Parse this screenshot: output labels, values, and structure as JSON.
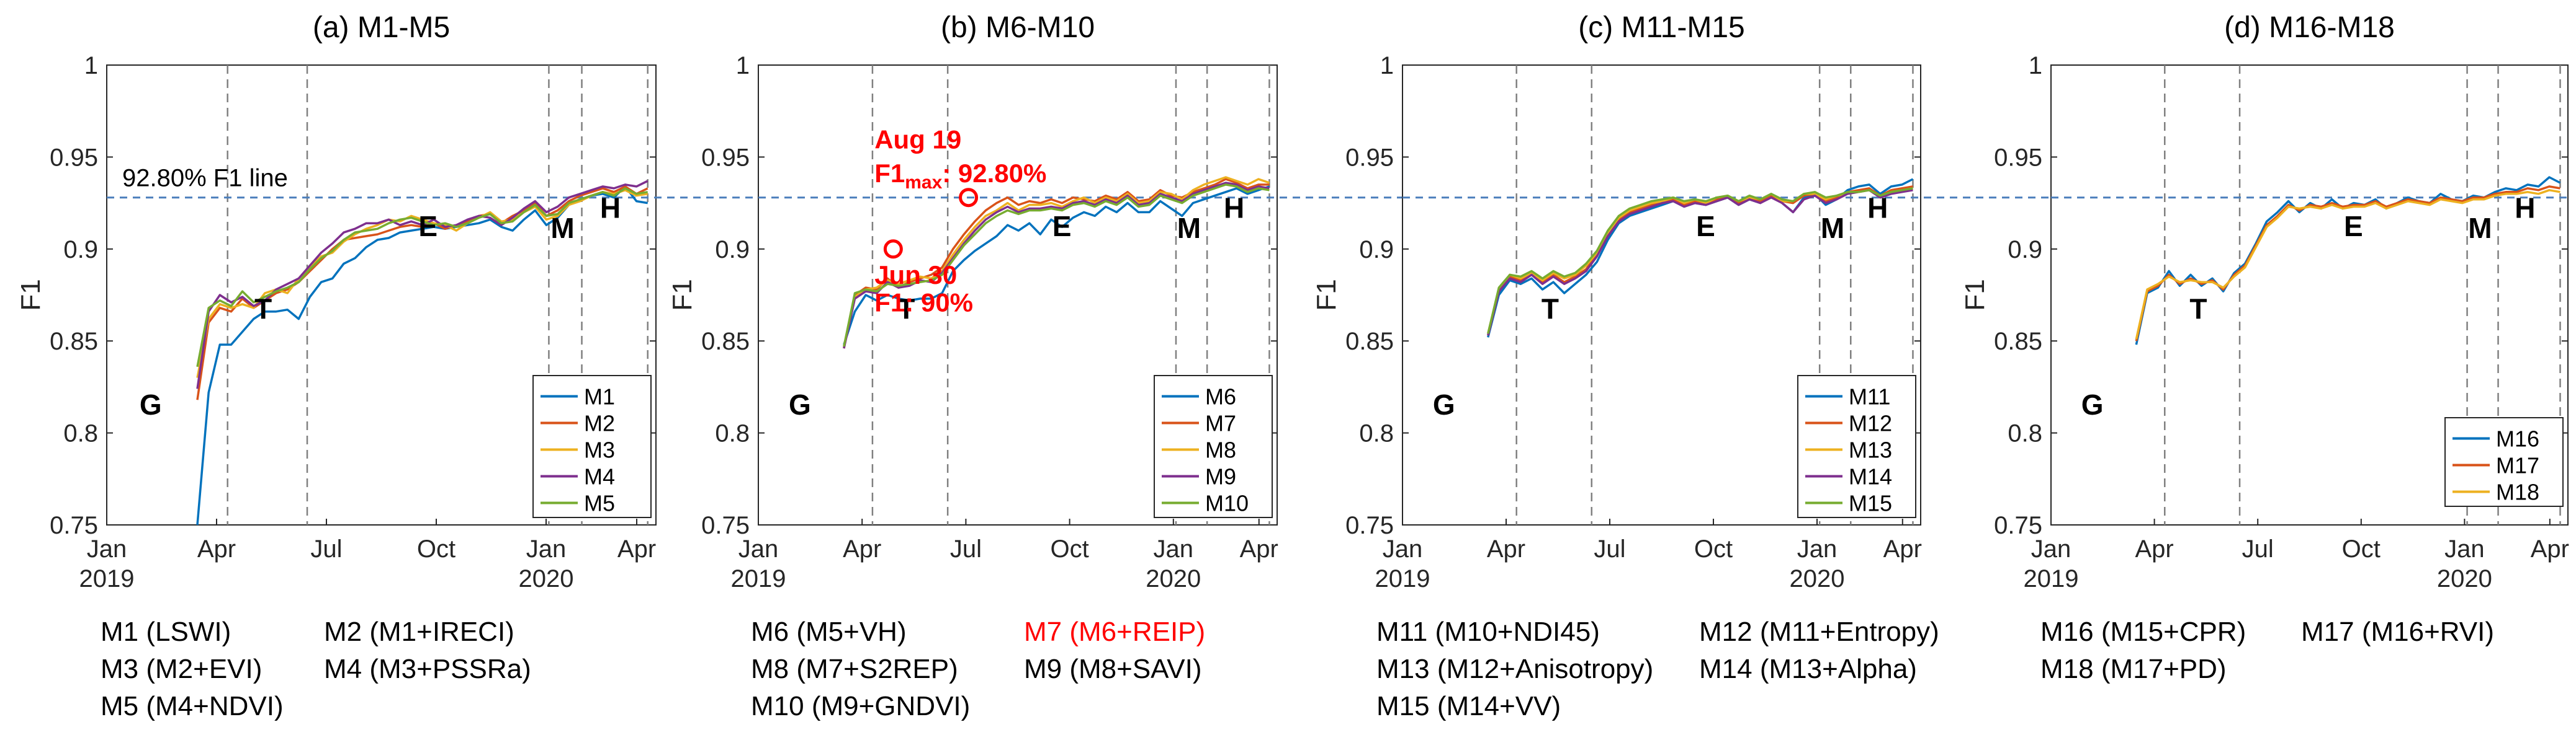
{
  "colors": {
    "M1": "#0072BD",
    "M2": "#D95319",
    "M3": "#EDB120",
    "M4": "#7E2F8E",
    "M5": "#77AC30",
    "ref_line": "#4A7EBB",
    "annotation": "#FF0000",
    "phase_line": "#808080"
  },
  "chart_data": [
    {
      "type": "line",
      "title": "(a) M1-M5",
      "ylabel": "F1",
      "ylim": [
        0.75,
        1
      ],
      "yticks": [
        "0.75",
        "0.8",
        "0.85",
        "0.9",
        "0.95",
        "1"
      ],
      "xticks": [
        "Jan",
        "Apr",
        "Jul",
        "Oct",
        "Jan",
        "Apr"
      ],
      "year_labels": [
        "2019",
        "2020"
      ],
      "ref_line_value": 0.928,
      "ref_line_label": "92.80% F1 line",
      "phase_labels": [
        "G",
        "T",
        "E",
        "M",
        "H"
      ],
      "legend_position": "bottom-right",
      "series": [
        {
          "name": "M1",
          "values": [
            0.75,
            0.822,
            0.848,
            0.848,
            0.855,
            0.862,
            0.866,
            0.866,
            0.867,
            0.862,
            0.874,
            0.882,
            0.884,
            0.892,
            0.895,
            0.901,
            0.905,
            0.906,
            0.909,
            0.91,
            0.911,
            0.912,
            0.911,
            0.912,
            0.913,
            0.914,
            0.916,
            0.912,
            0.91,
            0.916,
            0.921,
            0.913,
            0.917,
            0.924,
            0.927,
            0.929,
            0.93,
            0.928,
            0.934,
            0.926,
            0.925
          ]
        },
        {
          "name": "M2",
          "values": [
            0.818,
            0.86,
            0.868,
            0.866,
            0.873,
            0.868,
            0.872,
            0.876,
            0.878,
            0.882,
            0.888,
            0.894,
            0.9,
            0.905,
            0.906,
            0.907,
            0.908,
            0.91,
            0.912,
            0.913,
            0.912,
            0.914,
            0.911,
            0.913,
            0.915,
            0.918,
            0.919,
            0.914,
            0.918,
            0.921,
            0.925,
            0.918,
            0.921,
            0.926,
            0.929,
            0.931,
            0.933,
            0.931,
            0.934,
            0.93,
            0.933
          ]
        },
        {
          "name": "M3",
          "values": [
            0.83,
            0.862,
            0.87,
            0.868,
            0.87,
            0.868,
            0.876,
            0.878,
            0.876,
            0.884,
            0.89,
            0.896,
            0.898,
            0.904,
            0.908,
            0.911,
            0.913,
            0.916,
            0.915,
            0.918,
            0.916,
            0.914,
            0.913,
            0.91,
            0.914,
            0.917,
            0.92,
            0.915,
            0.916,
            0.92,
            0.923,
            0.916,
            0.918,
            0.924,
            0.926,
            0.929,
            0.931,
            0.93,
            0.932,
            0.929,
            0.93
          ]
        },
        {
          "name": "M4",
          "values": [
            0.824,
            0.866,
            0.875,
            0.871,
            0.874,
            0.869,
            0.872,
            0.878,
            0.881,
            0.884,
            0.891,
            0.898,
            0.903,
            0.909,
            0.911,
            0.914,
            0.914,
            0.916,
            0.913,
            0.915,
            0.913,
            0.916,
            0.912,
            0.913,
            0.916,
            0.918,
            0.917,
            0.913,
            0.917,
            0.922,
            0.926,
            0.92,
            0.923,
            0.928,
            0.93,
            0.932,
            0.934,
            0.933,
            0.935,
            0.934,
            0.937
          ]
        },
        {
          "name": "M5",
          "values": [
            0.836,
            0.868,
            0.872,
            0.869,
            0.877,
            0.871,
            0.874,
            0.877,
            0.879,
            0.882,
            0.889,
            0.895,
            0.899,
            0.905,
            0.909,
            0.91,
            0.911,
            0.914,
            0.916,
            0.917,
            0.915,
            0.913,
            0.914,
            0.912,
            0.914,
            0.917,
            0.919,
            0.914,
            0.915,
            0.92,
            0.924,
            0.918,
            0.919,
            0.925,
            0.927,
            0.929,
            0.931,
            0.929,
            0.933,
            0.93,
            0.931
          ]
        }
      ],
      "legend": [
        "M1",
        "M2",
        "M3",
        "M4",
        "M5"
      ]
    },
    {
      "type": "line",
      "title": "(b) M6-M10",
      "ylabel": "F1",
      "ylim": [
        0.75,
        1
      ],
      "yticks": [
        "0.75",
        "0.8",
        "0.85",
        "0.9",
        "0.95",
        "1"
      ],
      "xticks": [
        "Jan",
        "Apr",
        "Jul",
        "Oct",
        "Jan",
        "Apr"
      ],
      "year_labels": [
        "2019",
        "2020"
      ],
      "ref_line_value": 0.928,
      "phase_labels": [
        "G",
        "T",
        "E",
        "M",
        "H"
      ],
      "legend_position": "bottom-right",
      "annotations": [
        {
          "line1": "Aug 19",
          "line2_main": "F1",
          "line2_sub": "max",
          "line2_rest": ": 92.80%",
          "marker_y": 0.928
        },
        {
          "line1": "Jun 30",
          "line2_main": "F1: 90%",
          "marker_y": 0.9
        }
      ],
      "series": [
        {
          "name": "M6",
          "values": [
            0.848,
            0.866,
            0.875,
            0.872,
            0.875,
            0.873,
            0.872,
            0.873,
            0.873,
            0.876,
            0.888,
            0.894,
            0.899,
            0.903,
            0.907,
            0.913,
            0.91,
            0.914,
            0.908,
            0.916,
            0.912,
            0.917,
            0.92,
            0.918,
            0.923,
            0.92,
            0.925,
            0.92,
            0.92,
            0.926,
            0.922,
            0.918,
            0.925,
            0.927,
            0.929,
            0.931,
            0.933,
            0.93,
            0.932,
            0.934
          ]
        },
        {
          "name": "M7",
          "values": [
            0.846,
            0.875,
            0.879,
            0.878,
            0.884,
            0.879,
            0.882,
            0.884,
            0.886,
            0.89,
            0.9,
            0.908,
            0.915,
            0.921,
            0.925,
            0.928,
            0.924,
            0.926,
            0.925,
            0.927,
            0.925,
            0.928,
            0.927,
            0.926,
            0.929,
            0.927,
            0.931,
            0.926,
            0.927,
            0.932,
            0.929,
            0.928,
            0.931,
            0.933,
            0.935,
            0.938,
            0.936,
            0.933,
            0.935,
            0.935
          ]
        },
        {
          "name": "M8",
          "values": [
            0.847,
            0.874,
            0.878,
            0.879,
            0.883,
            0.881,
            0.883,
            0.885,
            0.884,
            0.888,
            0.897,
            0.905,
            0.912,
            0.918,
            0.921,
            0.925,
            0.921,
            0.924,
            0.924,
            0.925,
            0.923,
            0.926,
            0.928,
            0.925,
            0.928,
            0.926,
            0.93,
            0.925,
            0.926,
            0.931,
            0.93,
            0.927,
            0.932,
            0.935,
            0.937,
            0.939,
            0.937,
            0.935,
            0.938,
            0.936
          ]
        },
        {
          "name": "M9",
          "values": [
            0.846,
            0.873,
            0.877,
            0.876,
            0.882,
            0.879,
            0.88,
            0.883,
            0.882,
            0.887,
            0.895,
            0.903,
            0.91,
            0.916,
            0.92,
            0.923,
            0.92,
            0.922,
            0.922,
            0.923,
            0.922,
            0.925,
            0.926,
            0.924,
            0.927,
            0.925,
            0.929,
            0.924,
            0.925,
            0.93,
            0.928,
            0.926,
            0.93,
            0.932,
            0.934,
            0.936,
            0.935,
            0.932,
            0.934,
            0.933
          ]
        },
        {
          "name": "M10",
          "values": [
            0.847,
            0.876,
            0.878,
            0.877,
            0.881,
            0.88,
            0.881,
            0.882,
            0.883,
            0.886,
            0.894,
            0.902,
            0.908,
            0.914,
            0.918,
            0.921,
            0.919,
            0.921,
            0.921,
            0.922,
            0.921,
            0.924,
            0.925,
            0.923,
            0.926,
            0.924,
            0.928,
            0.923,
            0.924,
            0.929,
            0.927,
            0.925,
            0.929,
            0.931,
            0.933,
            0.935,
            0.934,
            0.931,
            0.933,
            0.932
          ]
        }
      ],
      "legend": [
        "M6",
        "M7",
        "M8",
        "M9",
        "M10"
      ]
    },
    {
      "type": "line",
      "title": "(c) M11-M15",
      "ylabel": "F1",
      "ylim": [
        0.75,
        1
      ],
      "yticks": [
        "0.75",
        "0.8",
        "0.85",
        "0.9",
        "0.95",
        "1"
      ],
      "xticks": [
        "Jan",
        "Apr",
        "Jul",
        "Oct",
        "Jan",
        "Apr"
      ],
      "year_labels": [
        "2019",
        "2020"
      ],
      "ref_line_value": 0.928,
      "phase_labels": [
        "G",
        "T",
        "E",
        "M",
        "H"
      ],
      "legend_position": "bottom-right",
      "series": [
        {
          "name": "M11",
          "values": [
            0.852,
            0.875,
            0.883,
            0.881,
            0.884,
            0.878,
            0.882,
            0.876,
            0.881,
            0.886,
            0.893,
            0.905,
            0.914,
            0.918,
            0.92,
            0.922,
            0.924,
            0.926,
            0.923,
            0.925,
            0.924,
            0.926,
            0.928,
            0.924,
            0.927,
            0.925,
            0.929,
            0.925,
            0.92,
            0.928,
            0.93,
            0.924,
            0.927,
            0.932,
            0.934,
            0.935,
            0.93,
            0.934,
            0.935,
            0.938
          ]
        },
        {
          "name": "M12",
          "values": [
            0.853,
            0.877,
            0.885,
            0.883,
            0.886,
            0.882,
            0.886,
            0.882,
            0.885,
            0.889,
            0.897,
            0.908,
            0.916,
            0.92,
            0.922,
            0.924,
            0.926,
            0.927,
            0.924,
            0.926,
            0.925,
            0.927,
            0.929,
            0.925,
            0.928,
            0.926,
            0.929,
            0.926,
            0.925,
            0.929,
            0.93,
            0.926,
            0.928,
            0.931,
            0.932,
            0.933,
            0.929,
            0.932,
            0.933,
            0.934
          ]
        },
        {
          "name": "M13",
          "values": [
            0.854,
            0.878,
            0.886,
            0.884,
            0.887,
            0.883,
            0.887,
            0.884,
            0.886,
            0.891,
            0.898,
            0.909,
            0.917,
            0.921,
            0.923,
            0.925,
            0.926,
            0.928,
            0.925,
            0.927,
            0.925,
            0.928,
            0.929,
            0.926,
            0.928,
            0.927,
            0.93,
            0.926,
            0.926,
            0.93,
            0.93,
            0.927,
            0.929,
            0.93,
            0.931,
            0.932,
            0.928,
            0.931,
            0.932,
            0.933
          ]
        },
        {
          "name": "M14",
          "values": [
            0.853,
            0.877,
            0.884,
            0.882,
            0.886,
            0.881,
            0.885,
            0.881,
            0.884,
            0.888,
            0.896,
            0.907,
            0.915,
            0.919,
            0.921,
            0.923,
            0.925,
            0.926,
            0.923,
            0.925,
            0.924,
            0.926,
            0.928,
            0.924,
            0.927,
            0.925,
            0.928,
            0.925,
            0.92,
            0.927,
            0.929,
            0.925,
            0.927,
            0.93,
            0.931,
            0.932,
            0.928,
            0.93,
            0.931,
            0.932
          ]
        },
        {
          "name": "M15",
          "values": [
            0.854,
            0.879,
            0.886,
            0.885,
            0.888,
            0.884,
            0.888,
            0.885,
            0.887,
            0.892,
            0.899,
            0.91,
            0.918,
            0.922,
            0.924,
            0.926,
            0.927,
            0.928,
            0.926,
            0.927,
            0.926,
            0.928,
            0.929,
            0.926,
            0.929,
            0.927,
            0.93,
            0.927,
            0.926,
            0.93,
            0.931,
            0.928,
            0.929,
            0.931,
            0.931,
            0.932,
            0.929,
            0.931,
            0.932,
            0.933
          ]
        }
      ],
      "legend": [
        "M11",
        "M12",
        "M13",
        "M14",
        "M15"
      ]
    },
    {
      "type": "line",
      "title": "(d) M16-M18",
      "ylabel": "F1",
      "ylim": [
        0.75,
        1
      ],
      "yticks": [
        "0.75",
        "0.8",
        "0.85",
        "0.9",
        "0.95",
        "1"
      ],
      "xticks": [
        "Jan",
        "Apr",
        "Jul",
        "Oct",
        "Jan",
        "Apr"
      ],
      "year_labels": [
        "2019",
        "2020"
      ],
      "ref_line_value": 0.928,
      "phase_labels": [
        "G",
        "T",
        "E",
        "M",
        "H"
      ],
      "legend_position": "bottom-right",
      "series": [
        {
          "name": "M16",
          "values": [
            0.848,
            0.876,
            0.879,
            0.888,
            0.88,
            0.886,
            0.88,
            0.884,
            0.877,
            0.887,
            0.892,
            0.903,
            0.915,
            0.92,
            0.926,
            0.92,
            0.925,
            0.922,
            0.927,
            0.922,
            0.925,
            0.924,
            0.927,
            0.922,
            0.925,
            0.928,
            0.926,
            0.925,
            0.93,
            0.927,
            0.926,
            0.929,
            0.928,
            0.931,
            0.933,
            0.932,
            0.935,
            0.934,
            0.939,
            0.936
          ]
        },
        {
          "name": "M17",
          "values": [
            0.85,
            0.877,
            0.88,
            0.886,
            0.881,
            0.884,
            0.881,
            0.883,
            0.878,
            0.886,
            0.891,
            0.902,
            0.913,
            0.918,
            0.924,
            0.921,
            0.924,
            0.923,
            0.925,
            0.923,
            0.924,
            0.924,
            0.926,
            0.923,
            0.925,
            0.927,
            0.926,
            0.925,
            0.928,
            0.927,
            0.926,
            0.928,
            0.928,
            0.93,
            0.931,
            0.931,
            0.933,
            0.932,
            0.934,
            0.933
          ]
        },
        {
          "name": "M18",
          "values": [
            0.851,
            0.878,
            0.881,
            0.885,
            0.882,
            0.883,
            0.882,
            0.882,
            0.879,
            0.885,
            0.89,
            0.901,
            0.912,
            0.917,
            0.923,
            0.922,
            0.923,
            0.922,
            0.924,
            0.922,
            0.923,
            0.923,
            0.925,
            0.922,
            0.924,
            0.926,
            0.925,
            0.924,
            0.927,
            0.926,
            0.925,
            0.927,
            0.927,
            0.929,
            0.93,
            0.93,
            0.931,
            0.93,
            0.932,
            0.931
          ]
        }
      ],
      "legend": [
        "M16",
        "M17",
        "M18"
      ]
    }
  ],
  "model_legends": [
    [
      [
        "M1 (LSWI)",
        "M2 (M1+IRECI)"
      ],
      [
        "M3 (M2+EVI)",
        "M4 (M3+PSSRa)"
      ],
      [
        "M5 (M4+NDVI)"
      ]
    ],
    [
      [
        "M6 (M5+VH)",
        "M7 (M6+REIP)"
      ],
      [
        "M8 (M7+S2REP)",
        "M9 (M8+SAVI)"
      ],
      [
        "M10 (M9+GNDVI)"
      ]
    ],
    [
      [
        "M11 (M10+NDI45)",
        "M12 (M11+Entropy)"
      ],
      [
        "M13 (M12+Anisotropy)",
        "M14 (M13+Alpha)"
      ],
      [
        "M15 (M14+VV)"
      ]
    ],
    [
      [
        "M16 (M15+CPR)",
        "M17 (M16+RVI)"
      ],
      [
        "M18 (M17+PD)"
      ]
    ]
  ]
}
